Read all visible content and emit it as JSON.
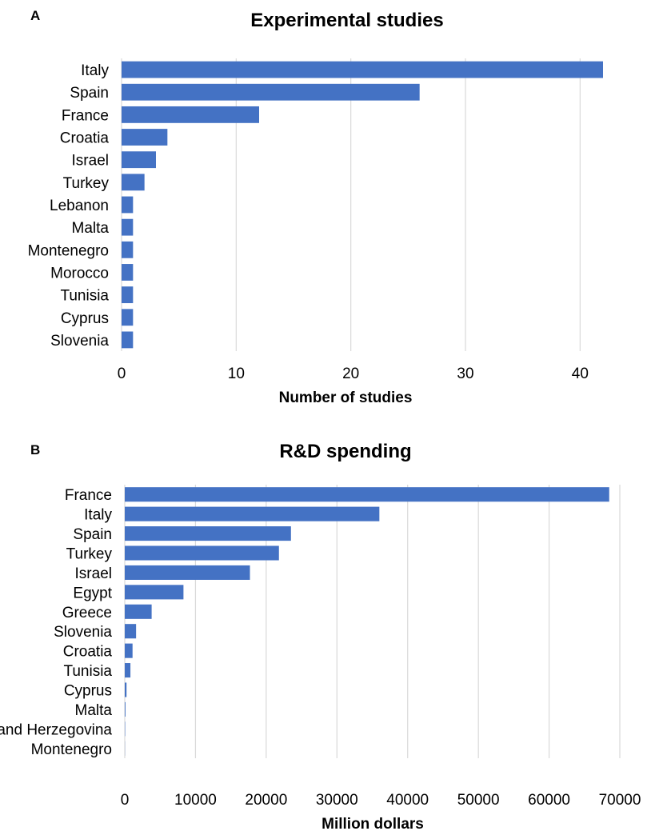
{
  "chart_data": [
    {
      "type": "bar",
      "orientation": "horizontal",
      "panel": "A",
      "title": "Experimental studies",
      "xlabel": "Number of studies",
      "ylabel": "",
      "categories": [
        "Italy",
        "Spain",
        "France",
        "Croatia",
        "Israel",
        "Turkey",
        "Lebanon",
        "Malta",
        "Montenegro",
        "Morocco",
        "Tunisia",
        "Cyprus",
        "Slovenia"
      ],
      "values": [
        42,
        26,
        12,
        4,
        3,
        2,
        1,
        1,
        1,
        1,
        1,
        1,
        1
      ],
      "xlim": [
        0,
        45
      ],
      "ticks": [
        0,
        10,
        20,
        30,
        40
      ],
      "tick_labels": [
        "0",
        "10",
        "20",
        "30",
        "40"
      ],
      "grid": true,
      "legend": "none",
      "bar_color": "#4472c4"
    },
    {
      "type": "bar",
      "orientation": "horizontal",
      "panel": "B",
      "title": "R&D spending",
      "xlabel": "Million dollars",
      "ylabel": "",
      "categories": [
        "France",
        "Italy",
        "Spain",
        "Turkey",
        "Israel",
        "Egypt",
        "Greece",
        "Slovenia",
        "Croatia",
        "Tunisia",
        "Cyprus",
        "Malta",
        "Bosnia and Herzegovina",
        "Montenegro"
      ],
      "values": [
        68500,
        36000,
        23500,
        21800,
        17700,
        8300,
        3800,
        1600,
        1100,
        800,
        250,
        100,
        50,
        20
      ],
      "xlim": [
        0,
        70000
      ],
      "ticks": [
        0,
        10000,
        20000,
        30000,
        40000,
        50000,
        60000,
        70000
      ],
      "tick_labels": [
        "0",
        "10000",
        "20000",
        "30000",
        "40000",
        "50000",
        "60000",
        "70000"
      ],
      "grid": true,
      "legend": "none",
      "bar_color": "#4472c4"
    }
  ]
}
